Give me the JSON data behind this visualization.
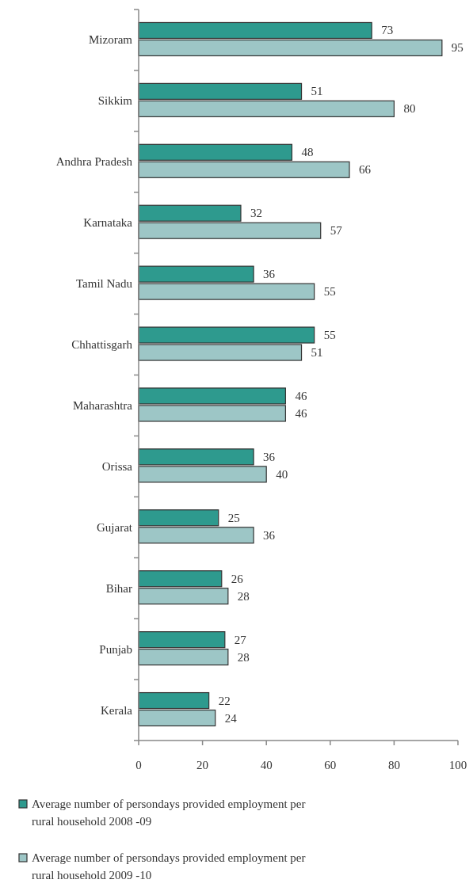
{
  "chart_data": {
    "type": "bar",
    "orientation": "horizontal",
    "categories": [
      "Mizoram",
      "Sikkim",
      "Andhra Pradesh",
      "Karnataka",
      "Tamil Nadu",
      "Chhattisgarh",
      "Maharashtra",
      "Orissa",
      "Gujarat",
      "Bihar",
      "Punjab",
      "Kerala"
    ],
    "series": [
      {
        "name": "Average number of persondays provided employment per rural household 2008 -09",
        "color": "#2e9a8e",
        "values": [
          73,
          51,
          48,
          32,
          36,
          55,
          46,
          36,
          25,
          26,
          27,
          22
        ]
      },
      {
        "name": "Average number of persondays provided employment per rural household 2009 -10",
        "color": "#9dc6c6",
        "values": [
          95,
          80,
          66,
          57,
          55,
          51,
          46,
          40,
          36,
          28,
          28,
          24
        ]
      }
    ],
    "xlim": [
      0,
      100
    ],
    "xticks": [
      0,
      20,
      40,
      60,
      80,
      100
    ],
    "data_labels": true,
    "legend": "bottom",
    "grid": false
  }
}
